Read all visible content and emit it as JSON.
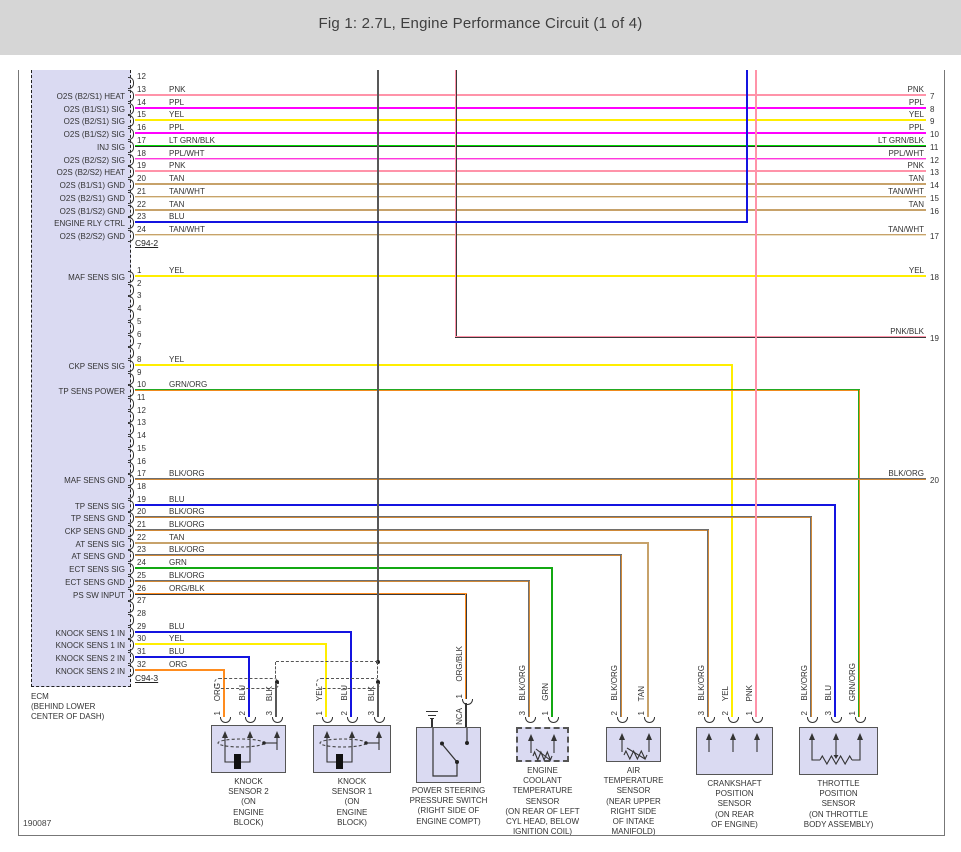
{
  "title": "Fig 1: 2.7L, Engine Performance Circuit (1 of 4)",
  "drawing_number": "190087",
  "colors": {
    "PNK": [
      "#ff93a9"
    ],
    "PPL": [
      "#ff00ff"
    ],
    "YEL": [
      "#ffee00"
    ],
    "LT GRN/BLK": [
      "#00dc00",
      "#2d2d2d"
    ],
    "PPL/WHT": [
      "#ff37dd",
      "#ffaaf0"
    ],
    "TAN": [
      "#c7a26a"
    ],
    "TAN/WHT": [
      "#c7a26a",
      "#ece0c4"
    ],
    "BLU": [
      "#1414e0"
    ],
    "GRN": [
      "#13a813"
    ],
    "GRN/ORG": [
      "#22aa22",
      "#ef8a1e"
    ],
    "BLK/ORG": [
      "#6e6e6e",
      "#d08836"
    ],
    "ORG/BLK": [
      "#ff8c1e",
      "#3a3a3a"
    ],
    "ORG": [
      "#ff8c1e"
    ],
    "BLK": [
      "#585858"
    ],
    "PNK/BLK": [
      "#ff93a9",
      "#3a3a3a"
    ]
  },
  "ecm": {
    "name_lines": [
      "ECM",
      "(BEHIND LOWER",
      "CENTER OF DASH)"
    ],
    "connectors": [
      {
        "label": "C94-2",
        "pins": [
          {
            "num": 12
          },
          {
            "num": 13,
            "signal": "O2S (B2/S1) HEAT",
            "color": "PNK",
            "dest": "exit:7"
          },
          {
            "num": 14,
            "signal": "O2S (B1/S1) SIG",
            "color": "PPL",
            "dest": "exit:8"
          },
          {
            "num": 15,
            "signal": "O2S (B2/S1) SIG",
            "color": "YEL",
            "dest": "exit:9"
          },
          {
            "num": 16,
            "signal": "O2S (B1/S2) SIG",
            "color": "PPL",
            "dest": "exit:10"
          },
          {
            "num": 17,
            "signal": "INJ SIG",
            "color": "LT GRN/BLK",
            "dest": "exit:11"
          },
          {
            "num": 18,
            "signal": "O2S (B2/S2) SIG",
            "color": "PPL/WHT",
            "dest": "exit:12"
          },
          {
            "num": 19,
            "signal": "O2S (B2/S2) HEAT",
            "color": "PNK",
            "dest": "exit:13"
          },
          {
            "num": 20,
            "signal": "O2S (B1/S1) GND",
            "color": "TAN",
            "dest": "exit:14"
          },
          {
            "num": 21,
            "signal": "O2S (B2/S1) GND",
            "color": "TAN/WHT",
            "dest": "exit:15"
          },
          {
            "num": 22,
            "signal": "O2S (B1/S2) GND",
            "color": "TAN",
            "dest": "exit:16"
          },
          {
            "num": 23,
            "signal": "ENGINE RLY CTRL",
            "color": "BLU",
            "dest": "top"
          },
          {
            "num": 24,
            "signal": "O2S (B2/S2) GND",
            "color": "TAN/WHT",
            "dest": "exit:17"
          }
        ]
      },
      {
        "label": "C94-3",
        "pins": [
          {
            "num": 1,
            "signal": "MAF SENS SIG",
            "color": "YEL",
            "dest": "exit:18"
          },
          {
            "num": 2
          },
          {
            "num": 3
          },
          {
            "num": 4
          },
          {
            "num": 5
          },
          {
            "num": 6
          },
          {
            "num": 7
          },
          {
            "num": 8,
            "signal": "CKP SENS SIG",
            "color": "YEL",
            "dest": "comp:crank:2"
          },
          {
            "num": 9
          },
          {
            "num": 10,
            "signal": "TP SENS POWER",
            "color": "GRN/ORG",
            "dest": "comp:tps:1"
          },
          {
            "num": 11
          },
          {
            "num": 12
          },
          {
            "num": 13
          },
          {
            "num": 14
          },
          {
            "num": 15
          },
          {
            "num": 16
          },
          {
            "num": 17,
            "signal": "MAF SENS GND",
            "color": "BLK/ORG",
            "dest": "exit:20"
          },
          {
            "num": 18
          },
          {
            "num": 19,
            "signal": "TP SENS SIG",
            "color": "BLU",
            "dest": "comp:tps:3"
          },
          {
            "num": 20,
            "signal": "TP SENS GND",
            "color": "BLK/ORG",
            "dest": "comp:tps:2"
          },
          {
            "num": 21,
            "signal": "CKP SENS GND",
            "color": "BLK/ORG",
            "dest": "comp:crank:3"
          },
          {
            "num": 22,
            "signal": "AT SENS SIG",
            "color": "TAN",
            "dest": "comp:air:1"
          },
          {
            "num": 23,
            "signal": "AT SENS GND",
            "color": "BLK/ORG",
            "dest": "comp:air:2"
          },
          {
            "num": 24,
            "signal": "ECT SENS SIG",
            "color": "GRN",
            "dest": "comp:ect:1"
          },
          {
            "num": 25,
            "signal": "ECT SENS GND",
            "color": "BLK/ORG",
            "dest": "comp:ect:3"
          },
          {
            "num": 26,
            "signal": "PS SW INPUT",
            "color": "ORG/BLK",
            "dest": "comp:ps:1"
          },
          {
            "num": 27
          },
          {
            "num": 28
          },
          {
            "num": 29,
            "signal": "KNOCK SENS 1 IN",
            "color": "BLU",
            "dest": "comp:knock1:2"
          },
          {
            "num": 30,
            "signal": "KNOCK SENS 1 IN",
            "color": "YEL",
            "dest": "comp:knock1:1"
          },
          {
            "num": 31,
            "signal": "KNOCK SENS 2 IN",
            "color": "BLU",
            "dest": "comp:knock2:2"
          },
          {
            "num": 32,
            "signal": "KNOCK SENS 2 IN",
            "color": "ORG",
            "dest": "comp:knock2:1"
          }
        ]
      }
    ]
  },
  "top_wires": [
    {
      "color": "BLK",
      "dest": "shield"
    },
    {
      "color": "PNK/BLK",
      "dest": "exit:19"
    },
    {
      "color": "BLU",
      "dest": "pin:23"
    },
    {
      "color": "PNK",
      "dest": "comp:crank:1"
    }
  ],
  "components": [
    {
      "id": "knock2",
      "type": "knock",
      "lines": [
        "KNOCK",
        "SENSOR 2",
        "(ON",
        "ENGINE",
        "BLOCK)"
      ],
      "pins": [
        {
          "num": 1,
          "color": "ORG"
        },
        {
          "num": 2,
          "color": "BLU"
        },
        {
          "num": 3,
          "color": "BLK"
        }
      ]
    },
    {
      "id": "knock1",
      "type": "knock",
      "lines": [
        "KNOCK",
        "SENSOR 1",
        "(ON",
        "ENGINE",
        "BLOCK)"
      ],
      "pins": [
        {
          "num": 1,
          "color": "YEL"
        },
        {
          "num": 2,
          "color": "BLU"
        },
        {
          "num": 3,
          "color": "BLK"
        }
      ]
    },
    {
      "id": "ps",
      "type": "switch",
      "lines": [
        "POWER STEERING",
        "PRESSURE SWITCH",
        "(RIGHT SIDE OF",
        "ENGINE COMPT)"
      ],
      "pins": [
        {
          "num": 1,
          "pin_label": "NCA",
          "color": "ORG/BLK"
        }
      ]
    },
    {
      "id": "ect",
      "type": "thermistor",
      "dashed": true,
      "lines": [
        "ENGINE",
        "COOLANT",
        "TEMPERATURE",
        "SENSOR",
        "(ON REAR OF LEFT",
        "CYL HEAD, BELOW",
        "IGNITION COIL)"
      ],
      "pins": [
        {
          "num": 3,
          "color": "BLK/ORG"
        },
        {
          "num": 1,
          "color": "GRN"
        }
      ]
    },
    {
      "id": "air",
      "type": "thermistor",
      "lines": [
        "AIR",
        "TEMPERATURE",
        "SENSOR",
        "(NEAR UPPER",
        "RIGHT SIDE",
        "OF INTAKE",
        "MANIFOLD)"
      ],
      "pins": [
        {
          "num": 2,
          "color": "BLK/ORG"
        },
        {
          "num": 1,
          "color": "TAN"
        }
      ]
    },
    {
      "id": "crank",
      "type": "plain",
      "lines": [
        "CRANKSHAFT",
        "POSITION",
        "SENSOR",
        "(ON REAR",
        "OF ENGINE)"
      ],
      "pins": [
        {
          "num": 3,
          "color": "BLK/ORG"
        },
        {
          "num": 2,
          "color": "YEL"
        },
        {
          "num": 1,
          "color": "PNK"
        }
      ]
    },
    {
      "id": "tps",
      "type": "pot",
      "lines": [
        "THROTTLE",
        "POSITION",
        "SENSOR",
        "(ON THROTTLE",
        "BODY ASSEMBLY)"
      ],
      "pins": [
        {
          "num": 2,
          "color": "BLK/ORG"
        },
        {
          "num": 3,
          "color": "BLU"
        },
        {
          "num": 1,
          "color": "GRN/ORG"
        }
      ]
    }
  ]
}
